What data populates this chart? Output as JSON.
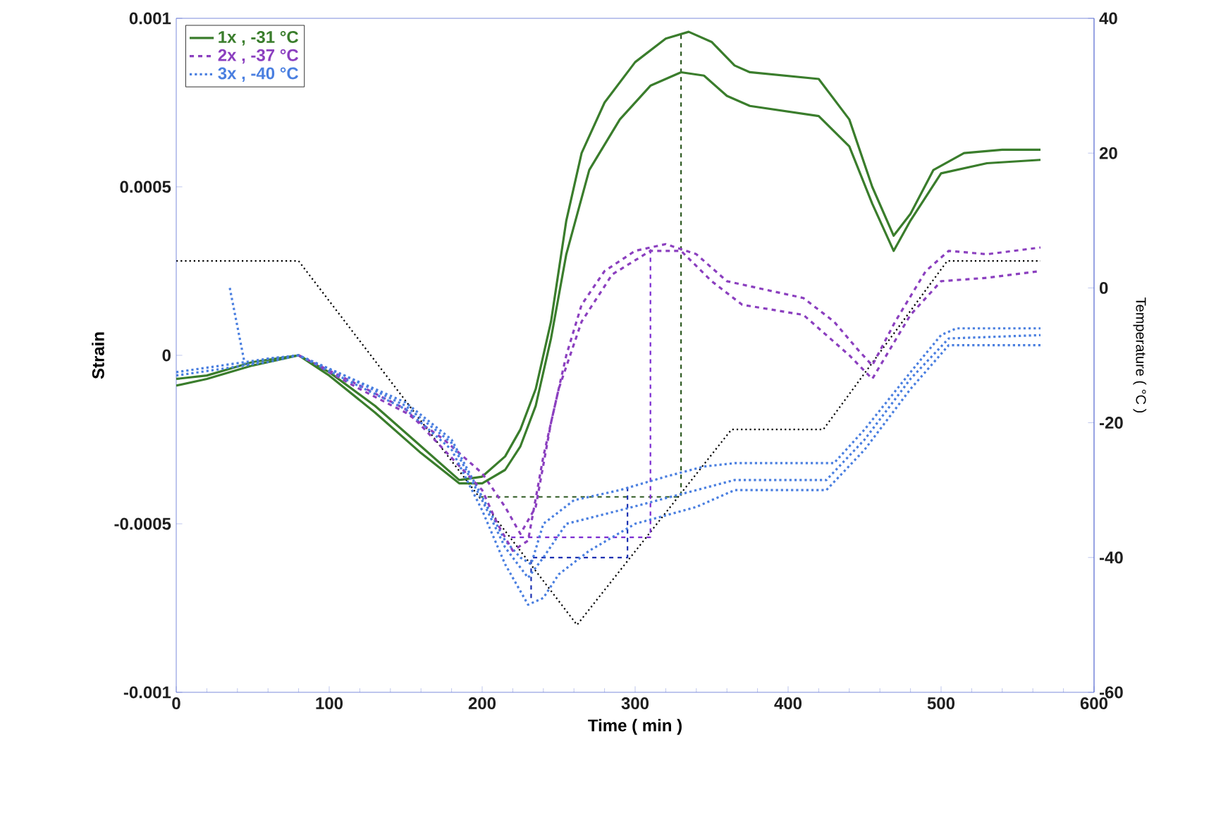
{
  "chart_data": {
    "type": "line",
    "xlabel": "Time  ( min )",
    "ylabel": "Strain",
    "y2label": "Temperature  ( °C )",
    "xlim": [
      0,
      600
    ],
    "xticks": [
      0,
      100,
      200,
      300,
      400,
      500,
      600
    ],
    "ylim": [
      -0.001,
      0.001
    ],
    "yticks": [
      -0.001,
      -0.0005,
      0,
      0.0005,
      0.001
    ],
    "y2lim": [
      -60,
      40
    ],
    "y2ticks": [
      -60,
      -40,
      -20,
      0,
      20,
      40
    ],
    "legend": "top left",
    "marker": "none",
    "series": [
      {
        "name": "1x , -31 °C",
        "color": "#3a7d2c",
        "line_style": "solid",
        "x": [
          0,
          20,
          50,
          80,
          100,
          130,
          160,
          185,
          200,
          215,
          225,
          235,
          245,
          255,
          265,
          280,
          300,
          320,
          335,
          350,
          365,
          375,
          420,
          440,
          455,
          469,
          480,
          495,
          515,
          540,
          565
        ],
        "values": [
          -7e-05,
          -6e-05,
          -2e-05,
          0,
          -5e-05,
          -0.00015,
          -0.00027,
          -0.00037,
          -0.00036,
          -0.0003,
          -0.00022,
          -0.0001,
          0.0001,
          0.0004,
          0.0006,
          0.00075,
          0.00087,
          0.00094,
          0.00096,
          0.00093,
          0.00086,
          0.00084,
          0.00082,
          0.0007,
          0.0005,
          0.000355,
          0.00042,
          0.00055,
          0.0006,
          0.00061,
          0.00061
        ]
      },
      {
        "color": "#3a7d2c",
        "line_style": "solid",
        "x": [
          0,
          20,
          50,
          80,
          100,
          130,
          160,
          185,
          200,
          215,
          225,
          235,
          245,
          255,
          270,
          290,
          310,
          330,
          345,
          360,
          375,
          420,
          440,
          455,
          469,
          480,
          500,
          530,
          565
        ],
        "values": [
          -9e-05,
          -7e-05,
          -3e-05,
          0,
          -6e-05,
          -0.00017,
          -0.00029,
          -0.00038,
          -0.00038,
          -0.00034,
          -0.00027,
          -0.00015,
          5e-05,
          0.0003,
          0.00055,
          0.0007,
          0.0008,
          0.00084,
          0.00083,
          0.00077,
          0.00074,
          0.00071,
          0.00062,
          0.00045,
          0.00031,
          0.0004,
          0.00054,
          0.00057,
          0.00058
        ]
      },
      {
        "name": "2x , -37 °C",
        "color": "#8b3fbf",
        "line_style": "dashed",
        "x": [
          80,
          120,
          150,
          175,
          200,
          215,
          225,
          235,
          245,
          255,
          265,
          280,
          300,
          320,
          340,
          360,
          380,
          410,
          430,
          445,
          455,
          470,
          490,
          505,
          530,
          565
        ],
        "values": [
          0,
          -0.0001,
          -0.00017,
          -0.00025,
          -0.00035,
          -0.00045,
          -0.00053,
          -0.00045,
          -0.0002,
          0,
          0.00015,
          0.00025,
          0.00031,
          0.00033,
          0.0003,
          0.00022,
          0.0002,
          0.00017,
          0.0001,
          2e-05,
          -3e-05,
          0.0001,
          0.00025,
          0.00031,
          0.0003,
          0.00032
        ]
      },
      {
        "color": "#8b3fbf",
        "line_style": "dashed",
        "x": [
          80,
          120,
          150,
          175,
          200,
          210,
          220,
          230,
          240,
          250,
          265,
          285,
          310,
          330,
          350,
          370,
          410,
          440,
          455,
          480,
          500,
          530,
          565
        ],
        "values": [
          0,
          -9e-05,
          -0.00016,
          -0.00028,
          -0.0004,
          -0.0005,
          -0.00058,
          -0.00055,
          -0.0003,
          -0.0001,
          0.0001,
          0.00024,
          0.00031,
          0.00031,
          0.00022,
          0.00015,
          0.00012,
          0,
          -7e-05,
          0.00012,
          0.00022,
          0.00023,
          0.00025
        ]
      },
      {
        "name": "3x , -40 °C",
        "color": "#4a7fe0",
        "line_style": "dotted",
        "x": [
          35,
          45,
          60,
          80,
          110,
          150,
          180,
          200,
          215,
          225,
          232,
          240,
          260,
          290,
          320,
          345,
          365,
          430,
          450,
          480,
          500,
          510,
          565
        ],
        "values": [
          0.0002,
          -3e-05,
          -1e-05,
          0,
          -6e-05,
          -0.00014,
          -0.00025,
          -0.00042,
          -0.00055,
          -0.0006,
          -0.00062,
          -0.0005,
          -0.00043,
          -0.0004,
          -0.00036,
          -0.00033,
          -0.00032,
          -0.00032,
          -0.00022,
          -5e-05,
          6e-05,
          8e-05,
          8e-05
        ]
      },
      {
        "color": "#4a7fe0",
        "line_style": "dotted",
        "x": [
          0,
          30,
          60,
          80,
          110,
          150,
          180,
          200,
          215,
          230,
          240,
          255,
          290,
          340,
          365,
          425,
          450,
          480,
          505,
          565
        ],
        "values": [
          -5e-05,
          -3e-05,
          -1e-05,
          0,
          -6e-05,
          -0.00015,
          -0.00026,
          -0.00043,
          -0.00057,
          -0.00066,
          -0.0006,
          -0.0005,
          -0.00046,
          -0.0004,
          -0.00037,
          -0.00037,
          -0.00025,
          -7e-05,
          5e-05,
          6e-05
        ]
      },
      {
        "color": "#4a7fe0",
        "line_style": "dotted",
        "x": [
          0,
          30,
          60,
          80,
          110,
          150,
          180,
          200,
          215,
          230,
          240,
          250,
          270,
          300,
          340,
          365,
          425,
          450,
          480,
          505,
          565
        ],
        "values": [
          -6e-05,
          -4e-05,
          -2e-05,
          0,
          -7e-05,
          -0.00016,
          -0.00028,
          -0.00046,
          -0.00062,
          -0.00074,
          -0.00072,
          -0.00065,
          -0.00058,
          -0.0005,
          -0.00045,
          -0.0004,
          -0.0004,
          -0.00028,
          -0.0001,
          3e-05,
          3e-05
        ]
      },
      {
        "color": "#000000",
        "line_style": "dotted",
        "axis": "y2",
        "x": [
          0,
          80,
          262,
          363,
          423,
          504,
          565
        ],
        "values": [
          4,
          4,
          -50,
          -21,
          -21,
          4,
          4
        ]
      },
      {
        "color": "#2e5a22",
        "line_style": "dashed",
        "axis": "y2",
        "x": [
          198,
          330,
          330
        ],
        "values": [
          -31,
          -31,
          38
        ]
      },
      {
        "color": "#7a2ad0",
        "line_style": "dashed",
        "axis": "y2",
        "x": [
          219,
          310,
          310
        ],
        "values": [
          -37,
          -37,
          6
        ]
      },
      {
        "color": "#1a2fb0",
        "line_style": "dashed",
        "axis": "y2",
        "x": [
          232,
          232,
          295,
          295
        ],
        "values": [
          -46,
          -40,
          -40,
          -29
        ]
      }
    ]
  }
}
